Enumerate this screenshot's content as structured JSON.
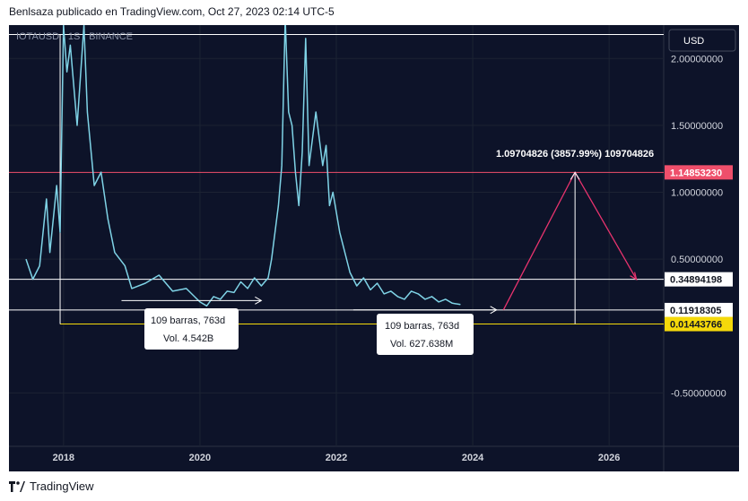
{
  "header": {
    "publisher": "Benlsaza publicado en TradingView.com, Oct 27, 2023 02:14 UTC-5"
  },
  "footer": {
    "brand": "TradingView"
  },
  "chart_data": {
    "type": "line",
    "symbol_label": "IOTAUSD · 1S · BINANCE",
    "currency": "USD",
    "y_ticks": [
      2.0,
      1.5,
      1.0,
      0.5,
      -0.5
    ],
    "y_tick_labels": [
      "2.00000000",
      "1.50000000",
      "1.00000000",
      "0.50000000",
      "-0.50000000"
    ],
    "x_ticks": [
      "2018",
      "2020",
      "2022",
      "2024",
      "2026"
    ],
    "ylim": [
      -0.9,
      2.25
    ],
    "xlim": [
      2017.2,
      2026.8
    ],
    "colors": {
      "background": "#0d1329",
      "price_line": "#7fd3e6",
      "white_line": "#ffffff",
      "red_line": "#ef4f6b",
      "yellow_line": "#f5d90a",
      "magenta": "#e8336e"
    },
    "price_series": {
      "x": [
        2017.45,
        2017.55,
        2017.65,
        2017.75,
        2017.8,
        2017.9,
        2017.95,
        2018.0,
        2018.05,
        2018.1,
        2018.2,
        2018.3,
        2018.35,
        2018.45,
        2018.55,
        2018.65,
        2018.75,
        2018.9,
        2019.0,
        2019.2,
        2019.4,
        2019.6,
        2019.8,
        2020.0,
        2020.1,
        2020.2,
        2020.3,
        2020.4,
        2020.5,
        2020.6,
        2020.7,
        2020.8,
        2020.9,
        2021.0,
        2021.05,
        2021.1,
        2021.15,
        2021.2,
        2021.25,
        2021.3,
        2021.35,
        2021.4,
        2021.45,
        2021.5,
        2021.55,
        2021.6,
        2021.7,
        2021.75,
        2021.8,
        2021.85,
        2021.9,
        2021.95,
        2022.0,
        2022.05,
        2022.1,
        2022.2,
        2022.3,
        2022.4,
        2022.5,
        2022.6,
        2022.7,
        2022.8,
        2022.9,
        2023.0,
        2023.1,
        2023.2,
        2023.3,
        2023.4,
        2023.5,
        2023.6,
        2023.7,
        2023.82
      ],
      "y": [
        0.5,
        0.35,
        0.45,
        0.95,
        0.55,
        1.05,
        0.7,
        2.25,
        1.9,
        2.1,
        1.5,
        2.25,
        1.6,
        1.05,
        1.15,
        0.8,
        0.55,
        0.45,
        0.28,
        0.32,
        0.38,
        0.26,
        0.28,
        0.18,
        0.15,
        0.22,
        0.2,
        0.26,
        0.25,
        0.33,
        0.28,
        0.36,
        0.3,
        0.36,
        0.5,
        0.7,
        0.9,
        1.2,
        2.3,
        1.6,
        1.5,
        1.15,
        0.9,
        1.3,
        2.15,
        1.2,
        1.6,
        1.4,
        1.2,
        1.35,
        0.9,
        1.0,
        0.85,
        0.7,
        0.6,
        0.4,
        0.3,
        0.36,
        0.27,
        0.32,
        0.24,
        0.26,
        0.22,
        0.2,
        0.26,
        0.24,
        0.2,
        0.22,
        0.18,
        0.2,
        0.17,
        0.16
      ]
    },
    "horizontal_lines": [
      {
        "value": 2.18,
        "color": "#ffffff",
        "x_start": 2017.2
      },
      {
        "value": 1.1485323,
        "color": "#ef4f6b",
        "x_start": 2017.2,
        "label": "1.14853230"
      },
      {
        "value": 0.34894198,
        "color": "#ffffff",
        "x_start": 2017.2,
        "label": "0.34894198"
      },
      {
        "value": 0.11918305,
        "color": "#ffffff",
        "x_start": 2017.2,
        "label": "0.11918305"
      },
      {
        "value": 0.01443766,
        "color": "#f5d90a",
        "x_start": 2017.95,
        "label": "0.01443766"
      }
    ],
    "vertical_lines": [
      {
        "x": 2017.95,
        "y_from": 0.01443766,
        "y_to": 2.18
      },
      {
        "x": 2025.5,
        "y_from": 0.01443766,
        "y_to": 1.1485323
      }
    ],
    "range_arrows": [
      {
        "x_from": 2018.85,
        "x_to": 2020.9,
        "y": 0.19
      },
      {
        "x_from": 2022.25,
        "x_to": 2024.35,
        "y": 0.12
      }
    ],
    "projection_path": {
      "x": [
        2024.45,
        2025.5,
        2026.4
      ],
      "y": [
        0.12,
        1.1485323,
        0.34894198
      ]
    },
    "projection_label": "1.09704826 (3857.99%) 109704826",
    "annotations": [
      {
        "line1": "109 barras, 763d",
        "line2": "Vol. 4.542B"
      },
      {
        "line1": "109 barras, 763d",
        "line2": "Vol. 627.638M"
      }
    ]
  }
}
